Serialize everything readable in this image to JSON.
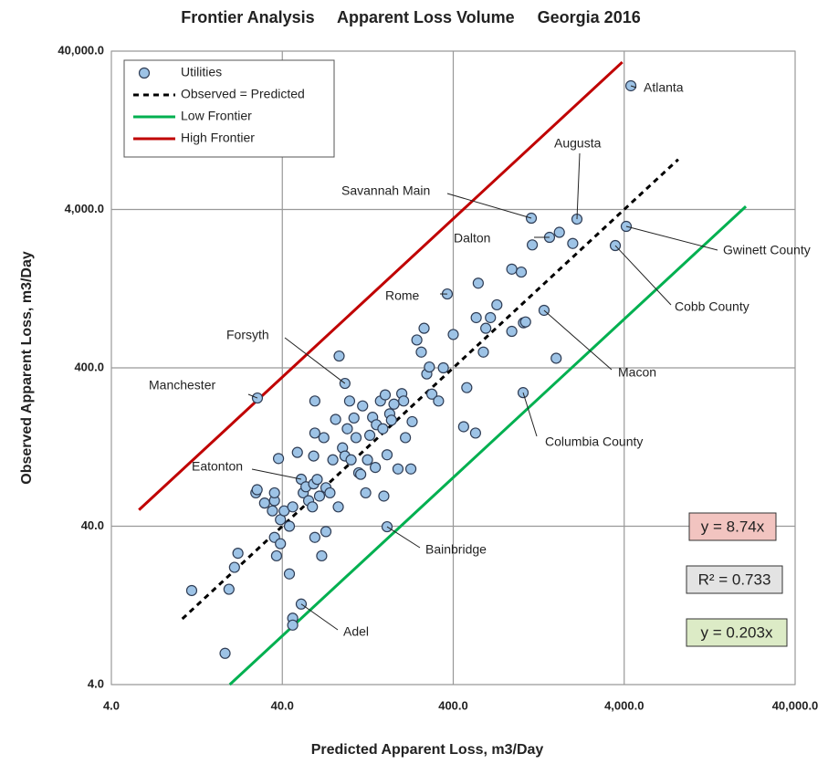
{
  "chart_data": {
    "type": "scatter",
    "title": "Frontier Analysis     Apparent Loss Volume     Georgia 2016",
    "xlabel": "Predicted Apparent Loss, m3/Day",
    "ylabel": "Observed Apparent Loss, m3/Day",
    "xscale": "log",
    "yscale": "log",
    "xlim": [
      4,
      40000
    ],
    "ylim": [
      4,
      40000
    ],
    "xticks": [
      {
        "value": 4,
        "label": "4.0"
      },
      {
        "value": 40,
        "label": "40.0"
      },
      {
        "value": 400,
        "label": "400.0"
      },
      {
        "value": 4000,
        "label": "4,000.0"
      },
      {
        "value": 40000,
        "label": "40,000.0"
      }
    ],
    "yticks": [
      {
        "value": 4,
        "label": "4.0"
      },
      {
        "value": 40,
        "label": "40.0"
      },
      {
        "value": 400,
        "label": "400.0"
      },
      {
        "value": 4000,
        "label": "4,000.0"
      },
      {
        "value": 40000,
        "label": "40,000.0"
      }
    ],
    "grid": true,
    "legend": "upper left",
    "series": [
      {
        "name": "Utilities",
        "kind": "scatter",
        "color": "#9dc3e6",
        "x": [
          4376,
          2117,
          1145,
          1463,
          4111,
          3549,
          369,
          93,
          28.6,
          1359,
          1025,
          51.6,
          164,
          51.6,
          11.8,
          19.5,
          18.5,
          22,
          21,
          28,
          28.5,
          31.5,
          36,
          38,
          36,
          35,
          39,
          36,
          37,
          39,
          41,
          44,
          44,
          46,
          46,
          46,
          49,
          53,
          55,
          57,
          60,
          61,
          61,
          62,
          62,
          62,
          64,
          66,
          68,
          70,
          72,
          72,
          76,
          79,
          82,
          85,
          86,
          90,
          93,
          96,
          99,
          101,
          105,
          108,
          112,
          115,
          118,
          123,
          126,
          130,
          135,
          140,
          142,
          150,
          155,
          157,
          160,
          164,
          170,
          174,
          180,
          190,
          200,
          205,
          210,
          226,
          230,
          245,
          260,
          270,
          280,
          290,
          300,
          328,
          350,
          400,
          460,
          480,
          540,
          545,
          560,
          600,
          620,
          660,
          720,
          880,
          880,
          1000,
          1030,
          1060,
          1160,
          1600,
          1670,
          2000
        ],
        "y": [
          24160,
          3477,
          3525,
          2668,
          3129,
          2367,
          1171,
          319,
          258,
          923,
          279,
          79.2,
          39.7,
          12.9,
          15.7,
          16,
          6.3,
          27,
          22,
          65,
          68,
          56,
          58,
          107,
          65,
          50,
          44,
          34,
          26,
          31,
          50,
          40,
          20,
          10.5,
          9.5,
          53,
          117,
          65,
          71,
          58,
          53,
          74,
          111,
          34,
          155,
          247,
          79,
          62,
          26,
          145,
          37,
          70,
          65,
          105,
          189,
          53,
          475,
          125,
          111,
          165,
          247,
          105,
          193,
          145,
          87,
          85,
          230,
          65,
          105,
          150,
          195,
          94,
          175,
          247,
          165,
          62,
          270,
          113,
          205,
          187,
          236,
          92,
          275,
          247,
          145,
          92,
          183,
          600,
          503,
          711,
          366,
          405,
          273,
          247,
          400,
          650,
          170,
          300,
          155,
          830,
          1370,
          503,
          711,
          830,
          1000,
          680,
          1680,
          1610,
          770,
          780,
          2390,
          460,
          2870,
          2440
        ]
      },
      {
        "name": "Observed = Predicted",
        "kind": "line",
        "style": "dashed",
        "color": "#000000",
        "x": [
          10.4,
          8280
        ],
        "y": [
          10.4,
          8280
        ]
      },
      {
        "name": "Low Frontier",
        "kind": "line",
        "style": "solid",
        "color": "#00b050",
        "x": [
          19.7,
          20600
        ],
        "y": [
          4,
          4182
        ]
      },
      {
        "name": "High Frontier",
        "kind": "line",
        "style": "solid",
        "color": "#c00000",
        "x": [
          5.8,
          3900
        ],
        "y": [
          50.7,
          34086
        ]
      }
    ],
    "annotations": [
      {
        "text": "Atlanta",
        "x": 4376,
        "y": 24160
      },
      {
        "text": "Augusta",
        "x": 2117,
        "y": 3477
      },
      {
        "text": "Savannah Main",
        "x": 1145,
        "y": 3525
      },
      {
        "text": "Dalton",
        "x": 1463,
        "y": 2668
      },
      {
        "text": "Gwinett County",
        "x": 4111,
        "y": 3129
      },
      {
        "text": "Cobb County",
        "x": 3549,
        "y": 2367
      },
      {
        "text": "Rome",
        "x": 369,
        "y": 1171
      },
      {
        "text": "Forsyth",
        "x": 93,
        "y": 319
      },
      {
        "text": "Manchester",
        "x": 28.6,
        "y": 258
      },
      {
        "text": "Macon",
        "x": 1359,
        "y": 923
      },
      {
        "text": "Columbia County",
        "x": 1025,
        "y": 279
      },
      {
        "text": "Eatonton",
        "x": 51.6,
        "y": 79.2
      },
      {
        "text": "Bainbridge",
        "x": 164,
        "y": 39.7
      },
      {
        "text": "Adel",
        "x": 51.6,
        "y": 12.9
      }
    ],
    "boxes": [
      {
        "text": "y = 8.74x",
        "color": "#f2c4c0"
      },
      {
        "text": "R² = 0.733",
        "color": "#e3e3e3"
      },
      {
        "text": "y = 0.203x",
        "color": "#dcebc6"
      }
    ]
  }
}
